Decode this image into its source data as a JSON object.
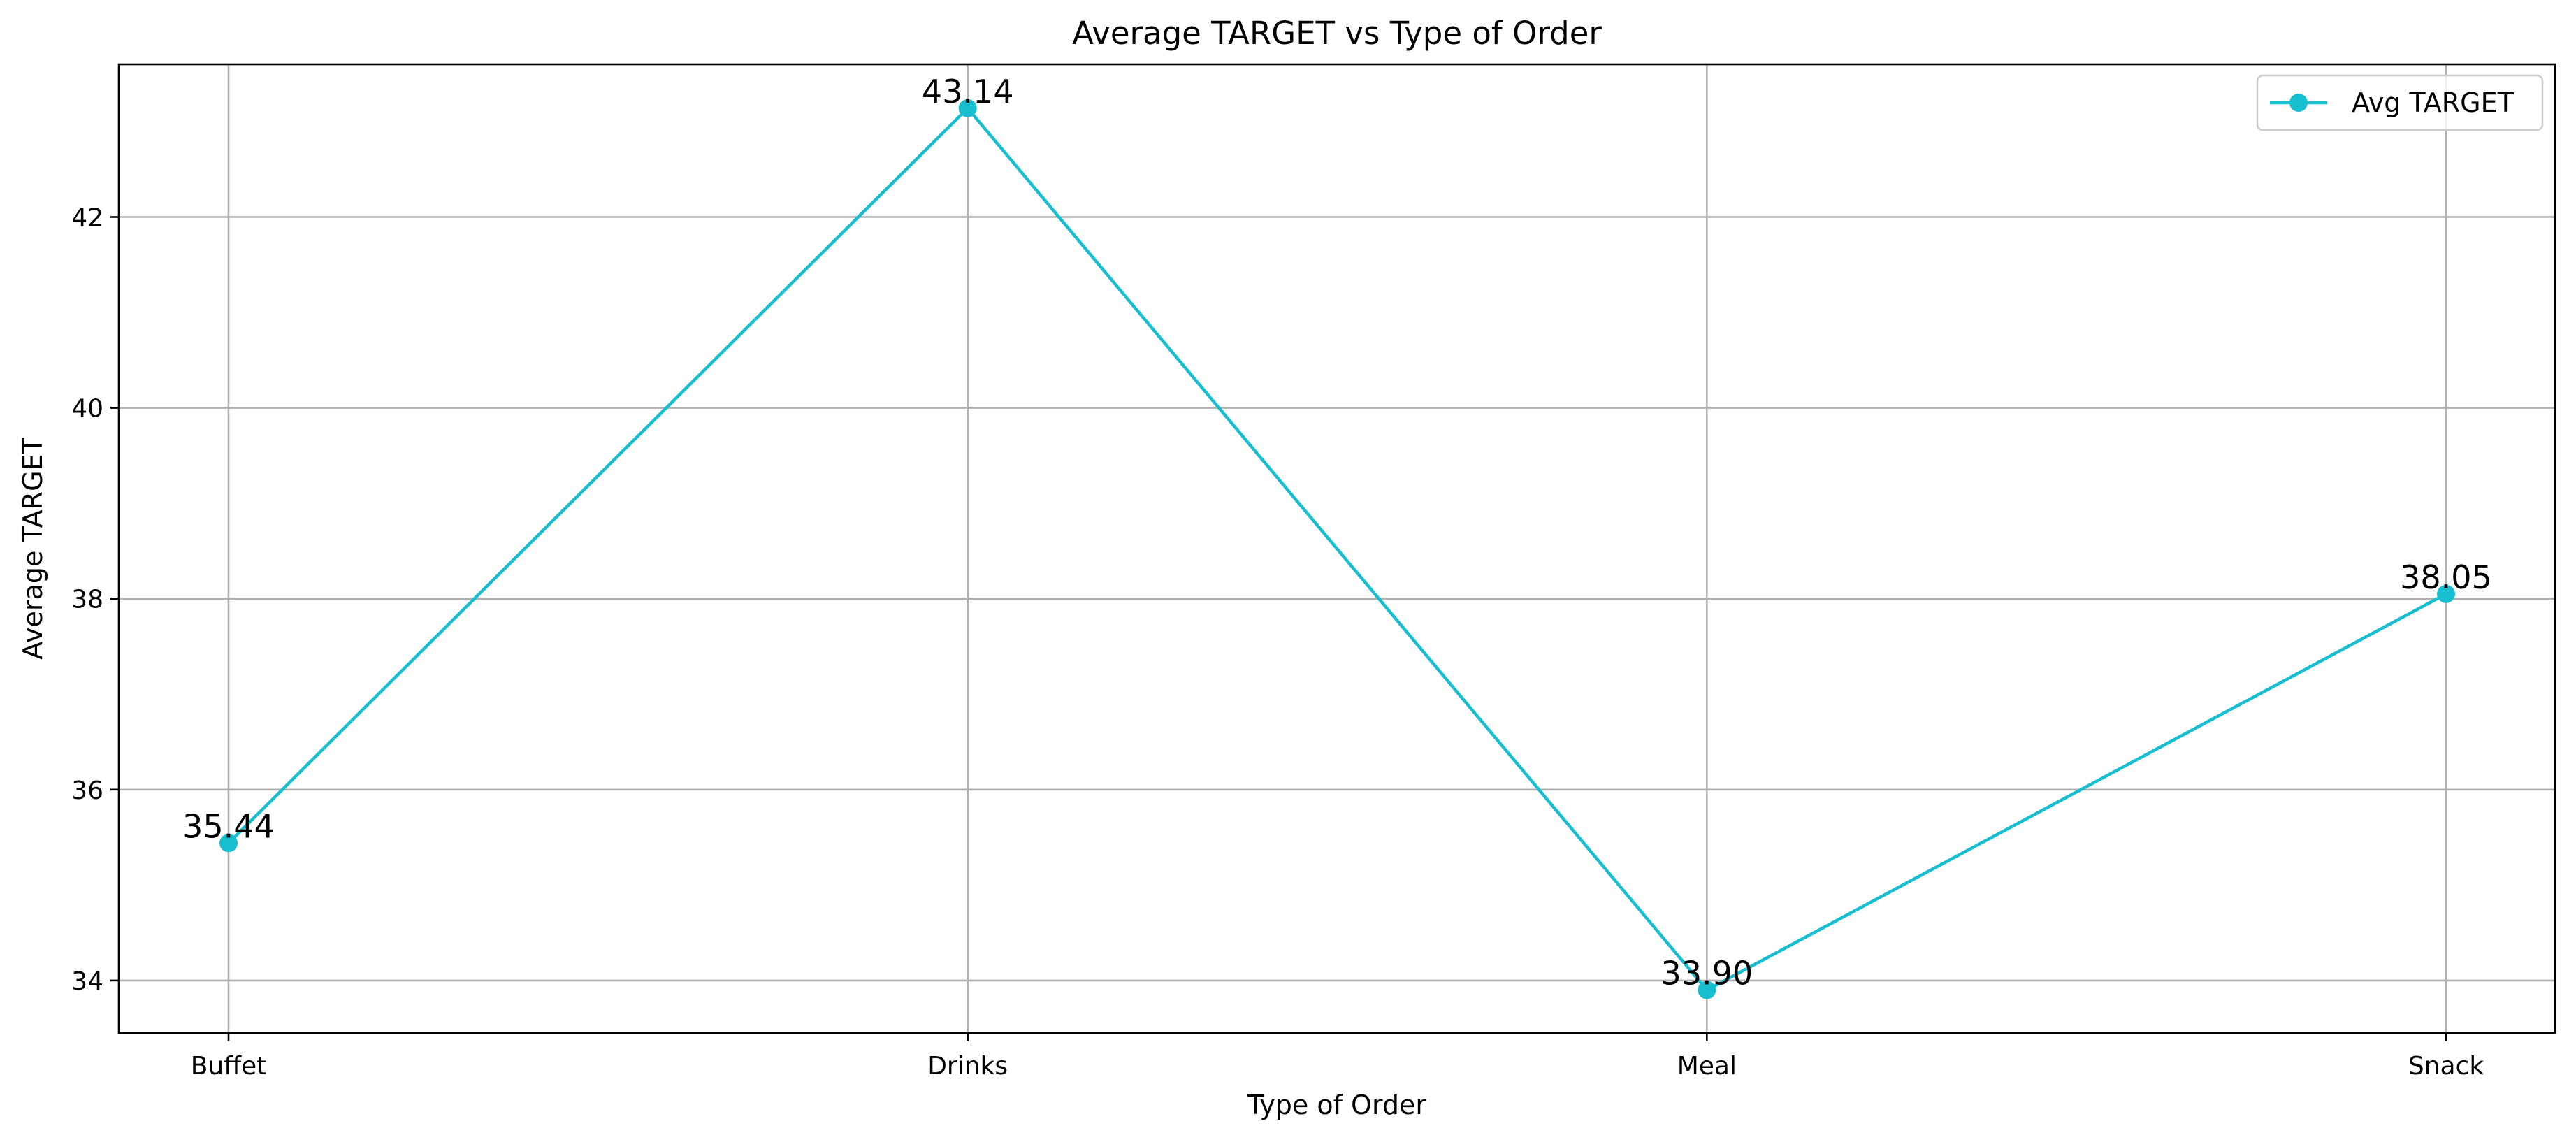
{
  "chart_data": {
    "type": "line",
    "title": "Average TARGET vs Type of Order",
    "xlabel": "Type of Order",
    "ylabel": "Average TARGET",
    "categories": [
      "Buffet",
      "Drinks",
      "Meal",
      "Snack"
    ],
    "series": [
      {
        "name": "Avg TARGET",
        "values": [
          35.44,
          43.14,
          33.9,
          38.05
        ],
        "color": "#17becf",
        "marker": "circle"
      }
    ],
    "data_labels": [
      "35.44",
      "43.14",
      "33.90",
      "38.05"
    ],
    "ylim": [
      33.45,
      43.6
    ],
    "yticks": [
      34,
      36,
      38,
      40,
      42
    ],
    "grid": true,
    "legend": "top-right"
  }
}
